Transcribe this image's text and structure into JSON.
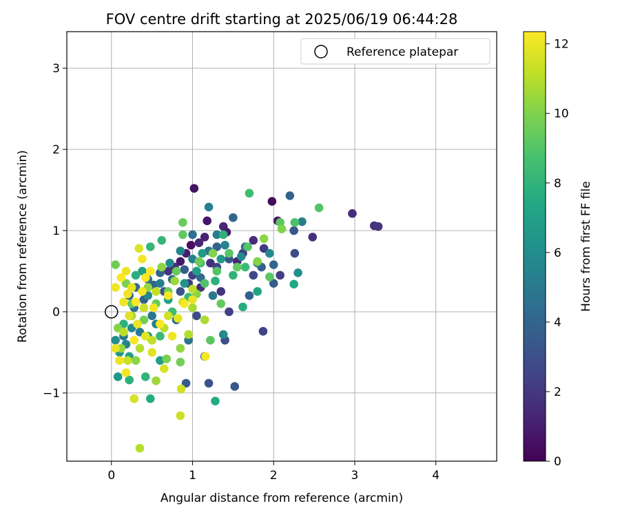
{
  "chart_data": {
    "type": "scatter",
    "title": "FOV centre drift starting at 2025/06/19 06:44:28",
    "xlabel": "Angular distance from reference (arcmin)",
    "ylabel": "Rotation from reference (arcmin)",
    "xlim": [
      -0.55,
      4.75
    ],
    "ylim": [
      -1.84,
      3.45
    ],
    "xticks": [
      "0",
      "1",
      "2",
      "3",
      "4"
    ],
    "yticks": [
      "−1",
      "0",
      "1",
      "2",
      "3"
    ],
    "grid": true,
    "legend": {
      "position": "top-right",
      "label": "Reference platepar",
      "marker": "open-circle"
    },
    "reference_point": {
      "x": 0,
      "y": 0
    },
    "colorbar": {
      "label": "Hours from first FF file",
      "colormap": "viridis",
      "range": [
        0,
        12.35
      ],
      "ticks": [
        "0",
        "2",
        "4",
        "6",
        "8",
        "10",
        "12"
      ]
    },
    "points": [
      [
        1.02,
        1.52,
        0.6
      ],
      [
        1.98,
        1.36,
        0.3
      ],
      [
        2.97,
        1.21,
        1.6
      ],
      [
        3.24,
        1.06,
        1.8
      ],
      [
        3.29,
        1.05,
        1.9
      ],
      [
        2.48,
        0.92,
        1.7
      ],
      [
        2.08,
        0.45,
        2.3
      ],
      [
        2.05,
        1.12,
        0.8
      ],
      [
        1.88,
        0.78,
        2.1
      ],
      [
        1.75,
        0.88,
        1.5
      ],
      [
        1.62,
        0.72,
        2.0
      ],
      [
        1.55,
        0.62,
        1.2
      ],
      [
        1.38,
        1.05,
        1.4
      ],
      [
        1.42,
        0.98,
        0.9
      ],
      [
        1.18,
        1.12,
        0.7
      ],
      [
        1.15,
        0.92,
        1.1
      ],
      [
        1.08,
        0.85,
        1.3
      ],
      [
        0.98,
        0.82,
        0.5
      ],
      [
        0.92,
        0.72,
        1.0
      ],
      [
        0.85,
        0.62,
        0.8
      ],
      [
        0.78,
        0.55,
        1.5
      ],
      [
        0.7,
        0.5,
        1.9
      ],
      [
        1.22,
        0.6,
        1.7
      ],
      [
        1.3,
        0.55,
        2.4
      ],
      [
        1.0,
        0.45,
        2.2
      ],
      [
        1.1,
        0.3,
        1.6
      ],
      [
        0.95,
        0.35,
        2.0
      ],
      [
        1.35,
        0.25,
        1.8
      ],
      [
        1.45,
        0.0,
        2.3
      ],
      [
        1.05,
        -0.05,
        2.8
      ],
      [
        1.4,
        -0.35,
        2.9
      ],
      [
        1.75,
        0.45,
        2.6
      ],
      [
        1.2,
        -0.88,
        3.2
      ],
      [
        0.92,
        -0.88,
        3.5
      ],
      [
        1.52,
        -0.92,
        3.4
      ],
      [
        1.87,
        -0.24,
        2.4
      ],
      [
        1.15,
        -0.55,
        3.6
      ],
      [
        0.85,
        0.25,
        3.1
      ],
      [
        2.2,
        1.43,
        3.9
      ],
      [
        1.5,
        1.16,
        4.1
      ],
      [
        1.65,
        0.8,
        4.3
      ],
      [
        1.85,
        0.55,
        3.7
      ],
      [
        2.0,
        0.58,
        4.0
      ],
      [
        2.25,
        1.0,
        3.3
      ],
      [
        2.26,
        0.72,
        2.9
      ],
      [
        2.0,
        0.35,
        3.6
      ],
      [
        1.7,
        0.2,
        3.9
      ],
      [
        1.45,
        0.65,
        3.4
      ],
      [
        1.3,
        0.8,
        3.8
      ],
      [
        1.1,
        0.42,
        4.2
      ],
      [
        0.9,
        0.52,
        3.6
      ],
      [
        0.75,
        0.4,
        4.4
      ],
      [
        0.6,
        0.48,
        4.0
      ],
      [
        0.52,
        0.33,
        3.8
      ],
      [
        0.45,
        0.4,
        4.6
      ],
      [
        0.3,
        0.3,
        4.2
      ],
      [
        0.4,
        0.15,
        3.7
      ],
      [
        0.65,
        0.25,
        3.3
      ],
      [
        0.28,
        0.05,
        4.5
      ],
      [
        0.22,
        0.2,
        3.9
      ],
      [
        1.2,
        0.75,
        4.8
      ],
      [
        1.0,
        0.95,
        4.6
      ],
      [
        1.25,
        0.2,
        4.9
      ],
      [
        0.8,
        -0.1,
        4.5
      ],
      [
        0.95,
        -0.35,
        4.7
      ],
      [
        0.5,
        -0.05,
        4.8
      ],
      [
        0.35,
        -0.25,
        5.0
      ],
      [
        0.15,
        -0.3,
        4.9
      ],
      [
        2.35,
        1.11,
        5.3
      ],
      [
        1.2,
        1.29,
        5.4
      ],
      [
        1.3,
        0.95,
        5.2
      ],
      [
        1.4,
        0.82,
        5.6
      ],
      [
        1.6,
        0.68,
        5.8
      ],
      [
        1.8,
        0.6,
        5.5
      ],
      [
        1.95,
        0.72,
        5.7
      ],
      [
        1.38,
        -0.28,
        5.9
      ],
      [
        1.0,
        0.65,
        5.4
      ],
      [
        0.85,
        0.75,
        5.6
      ],
      [
        0.72,
        0.6,
        5.9
      ],
      [
        0.6,
        0.35,
        5.3
      ],
      [
        0.45,
        0.2,
        5.7
      ],
      [
        0.55,
        -0.15,
        5.5
      ],
      [
        0.25,
        -0.2,
        5.8
      ],
      [
        0.18,
        -0.4,
        5.6
      ],
      [
        0.05,
        -0.35,
        6.0
      ],
      [
        2.3,
        0.48,
        6.2
      ],
      [
        1.35,
        0.65,
        6.5
      ],
      [
        1.12,
        0.72,
        6.6
      ],
      [
        1.05,
        0.5,
        6.8
      ],
      [
        0.9,
        0.35,
        6.3
      ],
      [
        0.7,
        0.15,
        6.9
      ],
      [
        0.45,
        -0.3,
        6.7
      ],
      [
        0.1,
        -0.5,
        6.4
      ],
      [
        0.08,
        -0.8,
        6.6
      ],
      [
        0.22,
        -0.55,
        7.0
      ],
      [
        0.6,
        -0.6,
        6.8
      ],
      [
        0.38,
        0.5,
        7.0
      ],
      [
        1.8,
        0.25,
        7.2
      ],
      [
        2.25,
        0.34,
        7.4
      ],
      [
        1.62,
        0.06,
        7.6
      ],
      [
        1.28,
        -1.1,
        7.5
      ],
      [
        0.48,
        -1.07,
        7.6
      ],
      [
        0.22,
        -0.84,
        7.8
      ],
      [
        0.42,
        -0.8,
        8.0
      ],
      [
        0.15,
        -0.15,
        7.9
      ],
      [
        0.3,
        0.45,
        7.7
      ],
      [
        0.48,
        0.8,
        8.2
      ],
      [
        0.62,
        0.88,
        8.1
      ],
      [
        1.38,
        0.95,
        7.9
      ],
      [
        1.65,
        0.55,
        8.3
      ],
      [
        1.5,
        0.45,
        8.0
      ],
      [
        1.28,
        0.38,
        7.8
      ],
      [
        1.1,
        0.6,
        8.4
      ],
      [
        0.95,
        0.18,
        8.2
      ],
      [
        0.75,
        0.0,
        8.5
      ],
      [
        0.6,
        -0.3,
        8.3
      ],
      [
        1.7,
        1.46,
        8.5
      ],
      [
        2.56,
        1.28,
        9.0
      ],
      [
        2.26,
        1.1,
        8.8
      ],
      [
        2.08,
        1.1,
        9.2
      ],
      [
        1.68,
        0.8,
        9.0
      ],
      [
        1.95,
        0.43,
        9.2
      ],
      [
        1.45,
        0.72,
        9.1
      ],
      [
        1.55,
        0.55,
        9.3
      ],
      [
        1.3,
        0.5,
        9.0
      ],
      [
        1.15,
        0.35,
        8.9
      ],
      [
        1.22,
        -0.35,
        9.2
      ],
      [
        1.35,
        0.1,
        9.4
      ],
      [
        0.88,
        1.1,
        9.5
      ],
      [
        0.88,
        0.95,
        9.3
      ],
      [
        1.08,
        0.62,
        9.6
      ],
      [
        0.8,
        0.5,
        9.4
      ],
      [
        0.7,
        0.25,
        9.6
      ],
      [
        0.55,
        0.1,
        9.5
      ],
      [
        0.4,
        -0.1,
        9.7
      ],
      [
        0.25,
        0.1,
        9.4
      ],
      [
        0.05,
        0.58,
        9.6
      ],
      [
        0.18,
        0.35,
        9.8
      ],
      [
        0.68,
        -0.58,
        9.8
      ],
      [
        0.85,
        -0.62,
        9.7
      ],
      [
        2.1,
        1.02,
        10.0
      ],
      [
        1.88,
        0.9,
        10.2
      ],
      [
        1.8,
        0.62,
        10.1
      ],
      [
        1.25,
        0.72,
        10.0
      ],
      [
        1.05,
        0.22,
        10.1
      ],
      [
        0.85,
        -0.45,
        10.3
      ],
      [
        0.55,
        -0.85,
        10.5
      ],
      [
        0.3,
        -0.6,
        10.2
      ],
      [
        0.12,
        -0.45,
        10.4
      ],
      [
        0.08,
        -0.2,
        10.1
      ],
      [
        0.25,
        -0.05,
        10.6
      ],
      [
        0.45,
        0.3,
        10.4
      ],
      [
        0.62,
        0.55,
        10.2
      ],
      [
        0.78,
        0.38,
        10.5
      ],
      [
        1.0,
        0.05,
        10.7
      ],
      [
        1.15,
        -0.1,
        10.8
      ],
      [
        0.95,
        -0.28,
        10.9
      ],
      [
        0.65,
        -0.2,
        11.0
      ],
      [
        0.5,
        -0.35,
        11.2
      ],
      [
        0.35,
        -0.45,
        11.0
      ],
      [
        0.2,
        -0.6,
        11.3
      ],
      [
        0.15,
        -0.25,
        11.1
      ],
      [
        0.4,
        0.05,
        11.4
      ],
      [
        0.55,
        0.25,
        11.2
      ],
      [
        0.7,
        -0.05,
        11.5
      ],
      [
        0.88,
        0.12,
        11.3
      ],
      [
        1.0,
        0.28,
        11.1
      ],
      [
        0.35,
        -1.68,
        11.0
      ],
      [
        0.85,
        -1.28,
        11.4
      ],
      [
        0.28,
        -1.07,
        11.6
      ],
      [
        0.86,
        -0.95,
        11.5
      ],
      [
        0.65,
        -0.7,
        11.7
      ],
      [
        0.5,
        -0.5,
        11.8
      ],
      [
        0.42,
        -0.3,
        11.9
      ],
      [
        0.32,
        -0.15,
        12.0
      ],
      [
        0.22,
        -0.05,
        11.8
      ],
      [
        0.15,
        0.12,
        12.1
      ],
      [
        0.25,
        0.3,
        11.9
      ],
      [
        0.38,
        0.25,
        12.2
      ],
      [
        0.48,
        0.5,
        12.3
      ],
      [
        0.34,
        0.78,
        11.7
      ],
      [
        0.38,
        0.65,
        12.2
      ],
      [
        0.18,
        0.5,
        12.0
      ],
      [
        0.12,
        0.42,
        12.3
      ],
      [
        0.05,
        0.3,
        12.1
      ],
      [
        1.16,
        -0.55,
        12.2
      ],
      [
        1.0,
        0.15,
        12.0
      ],
      [
        0.9,
        0.1,
        12.3
      ],
      [
        0.75,
        -0.3,
        12.1
      ],
      [
        0.6,
        -0.15,
        12.3
      ],
      [
        0.52,
        0.05,
        12.2
      ],
      [
        0.28,
        -0.35,
        12.3
      ],
      [
        0.18,
        -0.75,
        12.2
      ],
      [
        0.1,
        -0.6,
        12.0
      ],
      [
        0.05,
        -0.45,
        11.9
      ],
      [
        0.42,
        0.42,
        12.3
      ],
      [
        0.3,
        0.12,
        12.3
      ],
      [
        0.2,
        0.22,
        12.1
      ],
      [
        0.7,
        0.2,
        12.2
      ],
      [
        0.82,
        -0.08,
        11.9
      ]
    ]
  }
}
